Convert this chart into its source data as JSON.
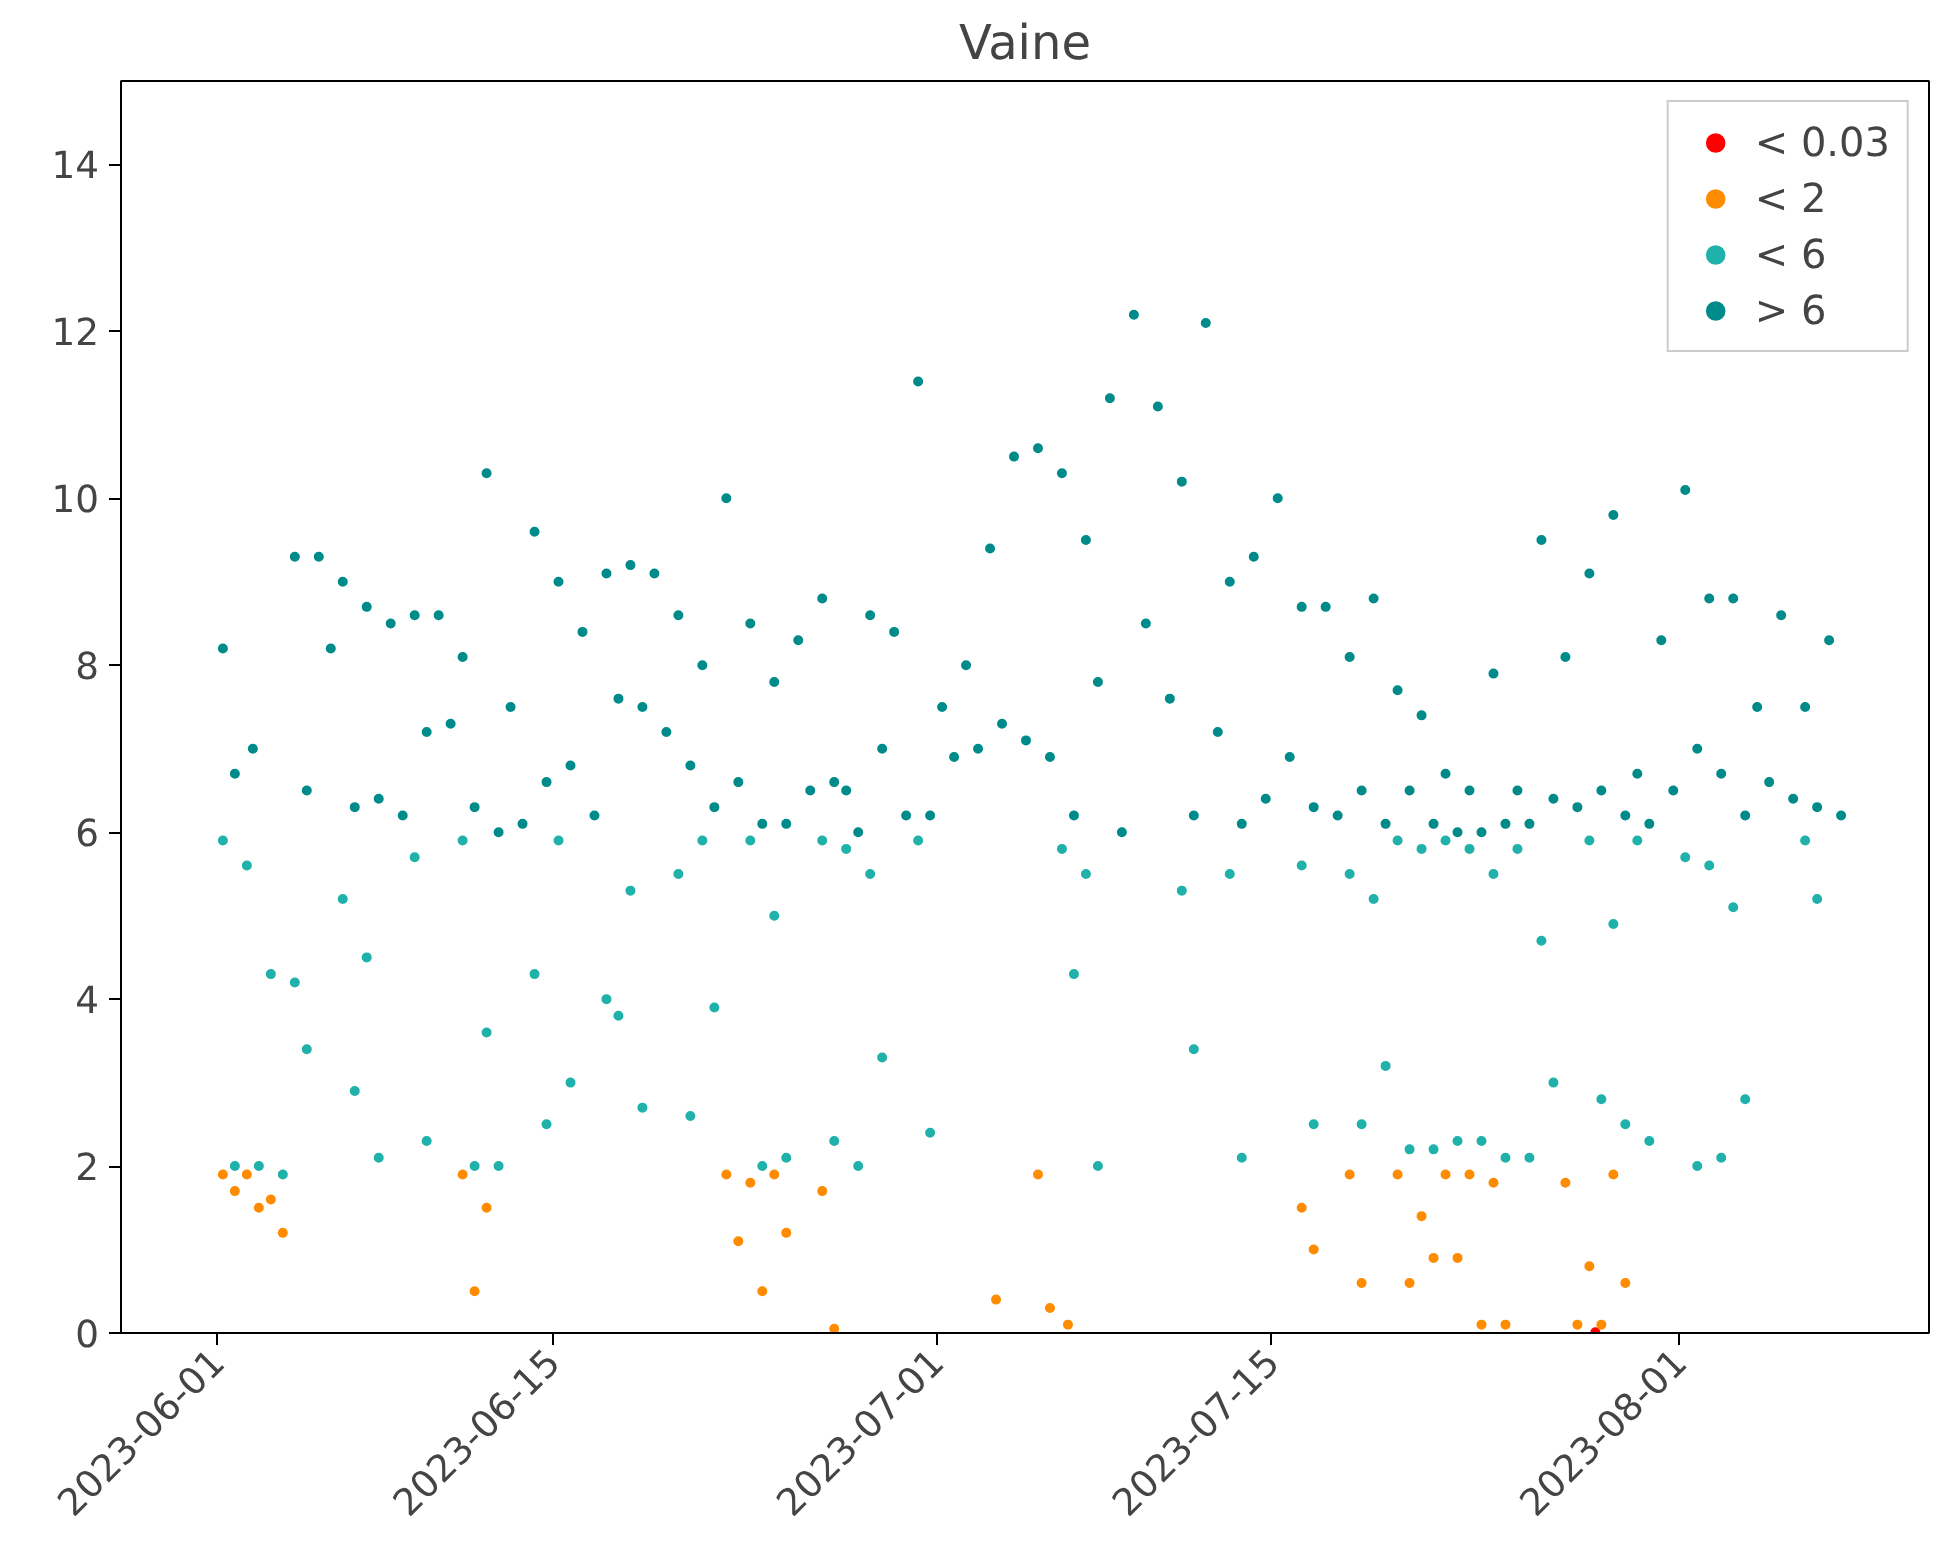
{
  "chart_data": {
    "type": "scatter",
    "title": "Vaine",
    "xlim": [
      "2023-05-28T00:00",
      "2023-08-11T10:00"
    ],
    "xticks": [
      "2023-06-01",
      "2023-06-15",
      "2023-07-01",
      "2023-07-15",
      "2023-08-01"
    ],
    "ylim": [
      0,
      15
    ],
    "yticks": [
      0,
      2,
      4,
      6,
      8,
      10,
      12,
      14
    ],
    "grid": false,
    "legend": "top right",
    "marker": "circle",
    "series": [
      {
        "name": "< 0.03",
        "color": "#ff0000",
        "x": [
          "2023-07-28T12:00"
        ],
        "values": [
          0.01
        ]
      },
      {
        "name": "< 2",
        "color": "#ff8c00",
        "x": [
          "2023-06-01T06:00",
          "2023-06-01T18:00",
          "2023-06-02T06:00",
          "2023-06-02T18:00",
          "2023-06-03T06:00",
          "2023-06-03T18:00",
          "2023-06-11T06:00",
          "2023-06-11T18:00",
          "2023-06-12T06:00",
          "2023-06-22T06:00",
          "2023-06-22T18:00",
          "2023-06-23T06:00",
          "2023-06-23T18:00",
          "2023-06-24T06:00",
          "2023-06-24T18:00",
          "2023-06-26T06:00",
          "2023-06-26T18:00",
          "2023-07-03T12:00",
          "2023-07-05T06:00",
          "2023-07-05T18:00",
          "2023-07-06T12:00",
          "2023-07-16T06:00",
          "2023-07-16T18:00",
          "2023-07-18T06:00",
          "2023-07-18T18:00",
          "2023-07-20T06:00",
          "2023-07-20T18:00",
          "2023-07-21T06:00",
          "2023-07-21T18:00",
          "2023-07-22T06:00",
          "2023-07-22T18:00",
          "2023-07-23T06:00",
          "2023-07-23T18:00",
          "2023-07-24T06:00",
          "2023-07-24T18:00",
          "2023-07-27T06:00",
          "2023-07-27T18:00",
          "2023-07-28T06:00",
          "2023-07-28T18:00",
          "2023-07-29T06:00",
          "2023-07-29T18:00"
        ],
        "values": [
          1.9,
          1.7,
          1.9,
          1.5,
          1.6,
          1.2,
          1.9,
          0.5,
          1.5,
          1.9,
          1.1,
          1.8,
          0.5,
          1.9,
          1.2,
          1.7,
          0.05,
          0.4,
          1.9,
          0.3,
          0.1,
          1.5,
          1.0,
          1.9,
          0.6,
          1.9,
          0.6,
          1.4,
          0.9,
          1.9,
          0.9,
          1.9,
          0.1,
          1.8,
          0.1,
          1.8,
          0.1,
          0.8,
          0.1,
          1.9,
          0.6
        ]
      },
      {
        "name": "< 6",
        "color": "#20b2aa",
        "x": [
          "2023-06-01T06:00",
          "2023-06-01T18:00",
          "2023-06-02T06:00",
          "2023-06-02T18:00",
          "2023-06-03T06:00",
          "2023-06-03T18:00",
          "2023-06-04T06:00",
          "2023-06-04T18:00",
          "2023-06-06T06:00",
          "2023-06-06T18:00",
          "2023-06-07T06:00",
          "2023-06-07T18:00",
          "2023-06-09T06:00",
          "2023-06-09T18:00",
          "2023-06-11T06:00",
          "2023-06-11T18:00",
          "2023-06-12T06:00",
          "2023-06-12T18:00",
          "2023-06-14T06:00",
          "2023-06-14T18:00",
          "2023-06-15T06:00",
          "2023-06-15T18:00",
          "2023-06-17T06:00",
          "2023-06-17T18:00",
          "2023-06-18T06:00",
          "2023-06-18T18:00",
          "2023-06-20T06:00",
          "2023-06-20T18:00",
          "2023-06-21T06:00",
          "2023-06-21T18:00",
          "2023-06-23T06:00",
          "2023-06-23T18:00",
          "2023-06-24T06:00",
          "2023-06-24T18:00",
          "2023-06-26T06:00",
          "2023-06-26T18:00",
          "2023-06-27T06:00",
          "2023-06-27T18:00",
          "2023-06-28T06:00",
          "2023-06-28T18:00",
          "2023-06-30T06:00",
          "2023-06-30T18:00",
          "2023-07-06T06:00",
          "2023-07-06T18:00",
          "2023-07-07T06:00",
          "2023-07-07T18:00",
          "2023-07-11T06:00",
          "2023-07-11T18:00",
          "2023-07-13T06:00",
          "2023-07-13T18:00",
          "2023-07-16T06:00",
          "2023-07-16T18:00",
          "2023-07-18T06:00",
          "2023-07-18T18:00",
          "2023-07-19T06:00",
          "2023-07-19T18:00",
          "2023-07-20T06:00",
          "2023-07-20T18:00",
          "2023-07-21T06:00",
          "2023-07-21T18:00",
          "2023-07-22T06:00",
          "2023-07-22T18:00",
          "2023-07-23T06:00",
          "2023-07-23T18:00",
          "2023-07-24T06:00",
          "2023-07-24T18:00",
          "2023-07-25T06:00",
          "2023-07-25T18:00",
          "2023-07-26T06:00",
          "2023-07-26T18:00",
          "2023-07-28T06:00",
          "2023-07-28T18:00",
          "2023-07-29T06:00",
          "2023-07-29T18:00",
          "2023-07-30T06:00",
          "2023-07-30T18:00",
          "2023-08-01T06:00",
          "2023-08-01T18:00",
          "2023-08-02T06:00",
          "2023-08-02T18:00",
          "2023-08-03T06:00",
          "2023-08-03T18:00",
          "2023-08-06T06:00",
          "2023-08-06T18:00"
        ],
        "values": [
          5.9,
          2.0,
          5.6,
          2.0,
          4.3,
          1.9,
          4.2,
          3.4,
          5.2,
          2.9,
          4.5,
          2.1,
          5.7,
          2.3,
          5.9,
          2.0,
          3.6,
          2.0,
          4.3,
          2.5,
          5.9,
          3.0,
          4.0,
          3.8,
          5.3,
          2.7,
          5.5,
          2.6,
          5.9,
          3.9,
          5.9,
          2.0,
          5.0,
          2.1,
          5.9,
          2.3,
          5.8,
          2.0,
          5.5,
          3.3,
          5.9,
          2.4,
          5.8,
          4.3,
          5.5,
          2.0,
          5.3,
          3.4,
          5.5,
          2.1,
          5.6,
          2.5,
          5.5,
          2.5,
          5.2,
          3.2,
          5.9,
          2.2,
          5.8,
          2.2,
          5.9,
          2.3,
          5.8,
          2.3,
          5.5,
          2.1,
          5.8,
          2.1,
          4.7,
          3.0,
          5.9,
          2.8,
          4.9,
          2.5,
          5.9,
          2.3,
          5.7,
          2.0,
          5.6,
          2.1,
          5.1,
          2.8,
          5.9,
          5.2
        ]
      },
      {
        "name": "> 6",
        "color": "#008b8b",
        "x": [
          "2023-06-01T06:00",
          "2023-06-01T18:00",
          "2023-06-02T12:00",
          "2023-06-04T06:00",
          "2023-06-04T18:00",
          "2023-06-05T06:00",
          "2023-06-05T18:00",
          "2023-06-06T06:00",
          "2023-06-06T18:00",
          "2023-06-07T06:00",
          "2023-06-07T18:00",
          "2023-06-08T06:00",
          "2023-06-08T18:00",
          "2023-06-09T06:00",
          "2023-06-09T18:00",
          "2023-06-10T06:00",
          "2023-06-10T18:00",
          "2023-06-11T06:00",
          "2023-06-11T18:00",
          "2023-06-12T06:00",
          "2023-06-12T18:00",
          "2023-06-13T06:00",
          "2023-06-13T18:00",
          "2023-06-14T06:00",
          "2023-06-14T18:00",
          "2023-06-15T06:00",
          "2023-06-15T18:00",
          "2023-06-16T06:00",
          "2023-06-16T18:00",
          "2023-06-17T06:00",
          "2023-06-17T18:00",
          "2023-06-18T06:00",
          "2023-06-18T18:00",
          "2023-06-19T06:00",
          "2023-06-19T18:00",
          "2023-06-20T06:00",
          "2023-06-20T18:00",
          "2023-06-21T06:00",
          "2023-06-21T18:00",
          "2023-06-22T06:00",
          "2023-06-22T18:00",
          "2023-06-23T06:00",
          "2023-06-23T18:00",
          "2023-06-24T06:00",
          "2023-06-24T18:00",
          "2023-06-25T06:00",
          "2023-06-25T18:00",
          "2023-06-26T06:00",
          "2023-06-26T18:00",
          "2023-06-27T06:00",
          "2023-06-27T18:00",
          "2023-06-28T06:00",
          "2023-06-28T18:00",
          "2023-06-29T06:00",
          "2023-06-29T18:00",
          "2023-06-30T06:00",
          "2023-06-30T18:00",
          "2023-07-01T06:00",
          "2023-07-01T18:00",
          "2023-07-02T06:00",
          "2023-07-02T18:00",
          "2023-07-03T06:00",
          "2023-07-03T18:00",
          "2023-07-04T06:00",
          "2023-07-04T18:00",
          "2023-07-05T06:00",
          "2023-07-05T18:00",
          "2023-07-06T06:00",
          "2023-07-06T18:00",
          "2023-07-07T06:00",
          "2023-07-07T18:00",
          "2023-07-08T06:00",
          "2023-07-08T18:00",
          "2023-07-09T06:00",
          "2023-07-09T18:00",
          "2023-07-10T06:00",
          "2023-07-10T18:00",
          "2023-07-11T06:00",
          "2023-07-11T18:00",
          "2023-07-12T06:00",
          "2023-07-12T18:00",
          "2023-07-13T06:00",
          "2023-07-13T18:00",
          "2023-07-14T06:00",
          "2023-07-14T18:00",
          "2023-07-15T06:00",
          "2023-07-15T18:00",
          "2023-07-16T06:00",
          "2023-07-16T18:00",
          "2023-07-17T06:00",
          "2023-07-17T18:00",
          "2023-07-18T06:00",
          "2023-07-18T18:00",
          "2023-07-19T06:00",
          "2023-07-19T18:00",
          "2023-07-20T06:00",
          "2023-07-20T18:00",
          "2023-07-21T06:00",
          "2023-07-21T18:00",
          "2023-07-22T06:00",
          "2023-07-22T18:00",
          "2023-07-23T06:00",
          "2023-07-23T18:00",
          "2023-07-24T06:00",
          "2023-07-24T18:00",
          "2023-07-25T06:00",
          "2023-07-25T18:00",
          "2023-07-26T06:00",
          "2023-07-26T18:00",
          "2023-07-27T06:00",
          "2023-07-27T18:00",
          "2023-07-28T06:00",
          "2023-07-28T18:00",
          "2023-07-29T06:00",
          "2023-07-29T18:00",
          "2023-07-30T06:00",
          "2023-07-30T18:00",
          "2023-07-31T06:00",
          "2023-07-31T18:00",
          "2023-08-01T06:00",
          "2023-08-01T18:00",
          "2023-08-02T06:00",
          "2023-08-02T18:00",
          "2023-08-03T06:00",
          "2023-08-03T18:00",
          "2023-08-04T06:00",
          "2023-08-04T18:00",
          "2023-08-05T06:00",
          "2023-08-05T18:00",
          "2023-08-06T06:00",
          "2023-08-06T18:00",
          "2023-08-07T06:00",
          "2023-08-07T18:00"
        ],
        "values": [
          8.2,
          6.7,
          7.0,
          9.3,
          6.5,
          9.3,
          8.2,
          9.0,
          6.3,
          8.7,
          6.4,
          8.5,
          6.2,
          8.6,
          7.2,
          8.6,
          7.3,
          8.1,
          6.3,
          10.3,
          6.0,
          7.5,
          6.1,
          9.6,
          6.6,
          9.0,
          6.8,
          8.4,
          6.2,
          9.1,
          7.6,
          9.2,
          7.5,
          9.1,
          7.2,
          8.6,
          6.8,
          8.0,
          6.3,
          10.0,
          6.6,
          8.5,
          6.1,
          7.8,
          6.1,
          8.3,
          6.5,
          8.8,
          6.6,
          6.5,
          6.0,
          8.6,
          7.0,
          8.4,
          6.2,
          11.4,
          6.2,
          7.5,
          6.9,
          8.0,
          7.0,
          9.4,
          7.3,
          10.5,
          7.1,
          10.6,
          6.9,
          10.3,
          6.2,
          9.5,
          7.8,
          11.2,
          6.0,
          12.2,
          8.5,
          11.1,
          7.6,
          10.2,
          6.2,
          12.1,
          7.2,
          9.0,
          6.1,
          9.3,
          6.4,
          10.0,
          6.9,
          8.7,
          6.3,
          8.7,
          6.2,
          8.1,
          6.5,
          8.8,
          6.1,
          7.7,
          6.5,
          7.4,
          6.1,
          6.7,
          6.0,
          6.5,
          6.0,
          7.9,
          6.1,
          6.5,
          6.1,
          9.5,
          6.4,
          8.1,
          6.3,
          9.1,
          6.5,
          9.8,
          6.2,
          6.7,
          6.1,
          8.3,
          6.5,
          10.1,
          7.0,
          8.8,
          6.7,
          8.8,
          6.2,
          7.5,
          6.6,
          8.6,
          6.4,
          7.5,
          6.3,
          8.3,
          6.2
        ]
      }
    ]
  }
}
